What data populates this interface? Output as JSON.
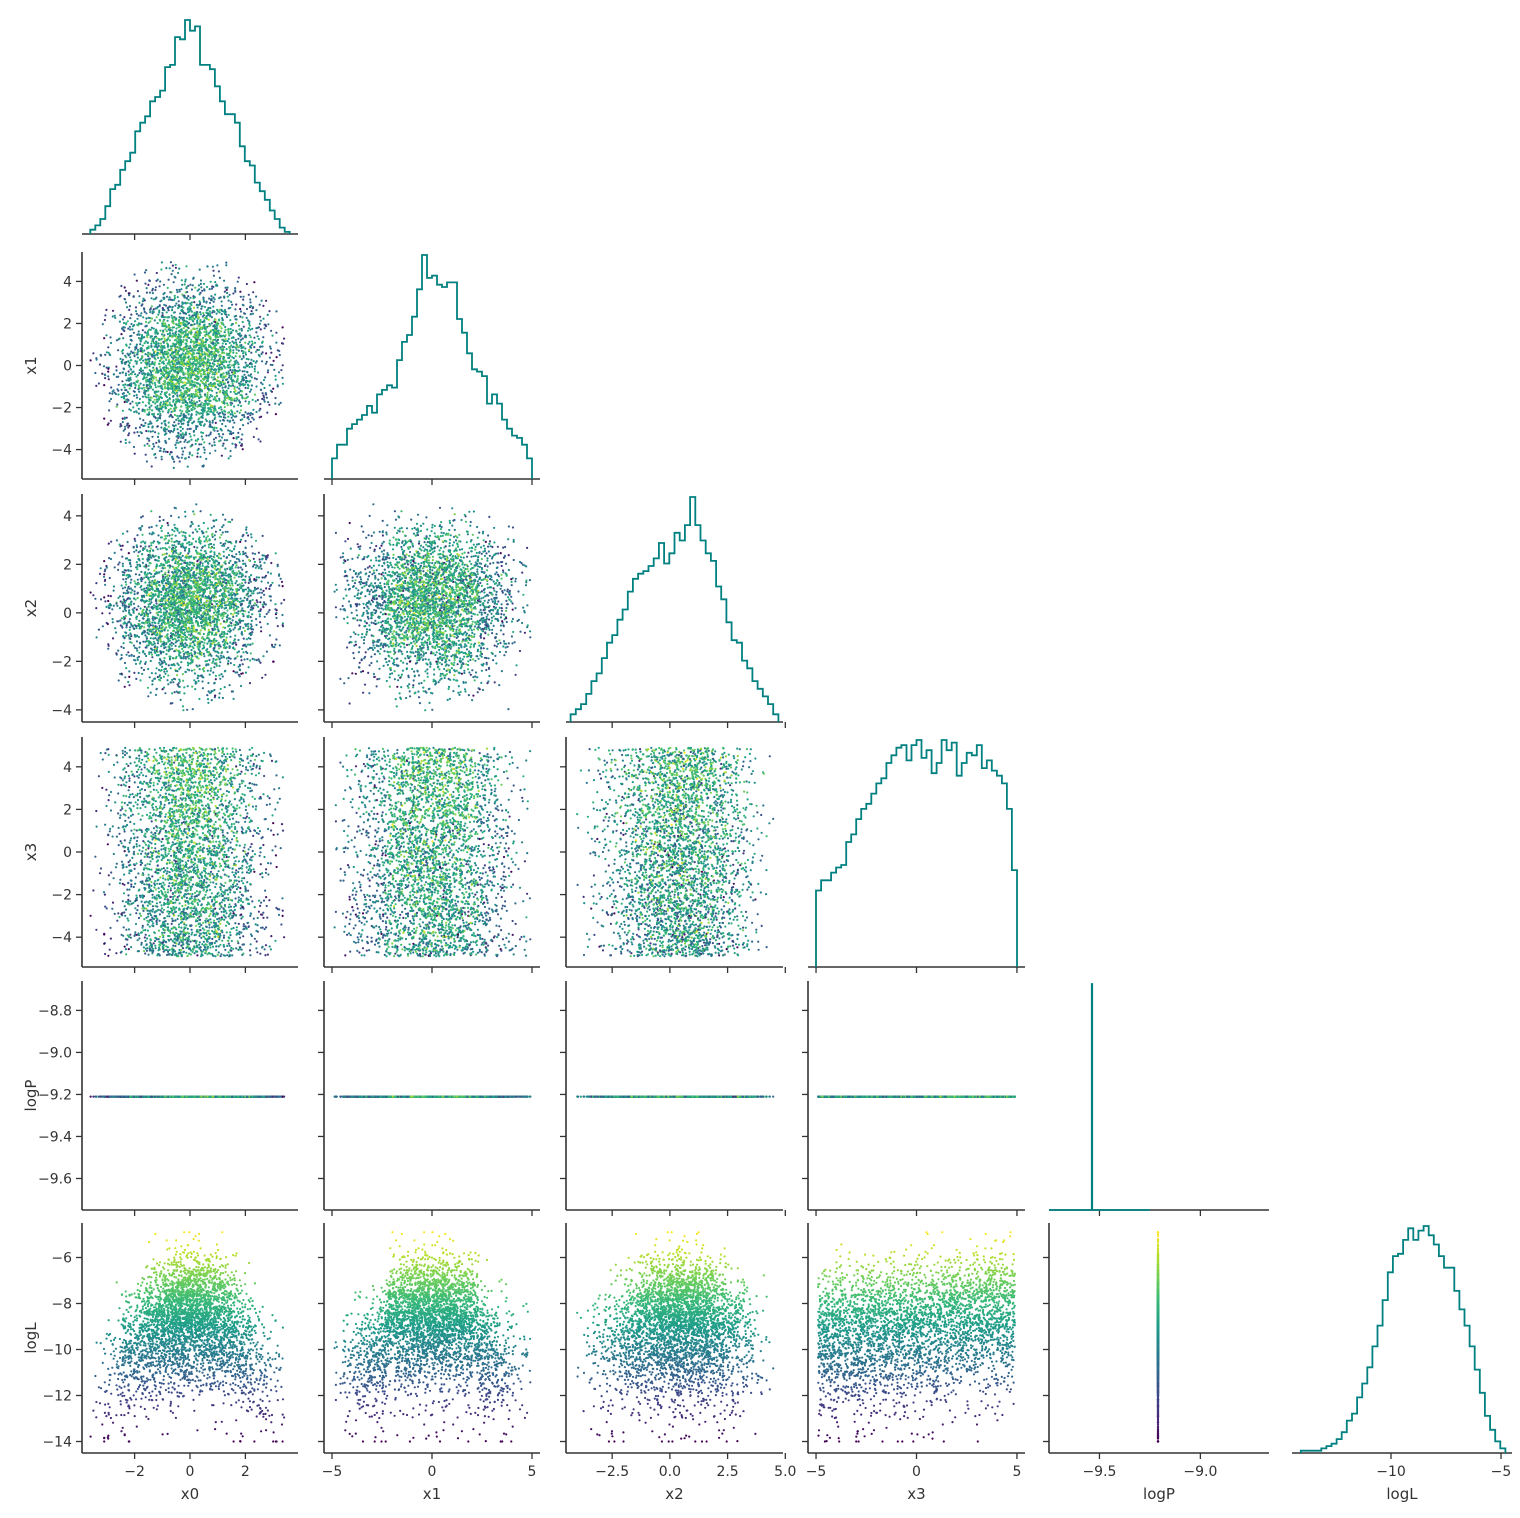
{
  "chart_data": {
    "type": "scatter",
    "layout": "corner-pairplot",
    "variables": [
      "x0",
      "x1",
      "x2",
      "x3",
      "logP",
      "logL"
    ],
    "point_color_by": "logL",
    "colormap": "viridis",
    "histogram_color": "#008080",
    "n_samples": 3500,
    "axes": {
      "x0": {
        "range": [
          -3.9,
          3.9
        ],
        "ticks": [
          -2,
          0,
          2
        ],
        "tick_labels": [
          "−2",
          "0",
          "2"
        ]
      },
      "x1": {
        "range": [
          -5.4,
          5.4
        ],
        "ticks": [
          -5,
          0,
          5
        ],
        "tick_labels": [
          "−5",
          "0",
          "5"
        ],
        "y_ticks": [
          4,
          2,
          0,
          -2,
          -4
        ],
        "y_tick_labels": [
          "4",
          "2",
          "0",
          "−2",
          "−4"
        ]
      },
      "x2": {
        "range": [
          -4.5,
          4.9
        ],
        "ticks": [
          -2.5,
          0.0,
          2.5,
          5.0
        ],
        "tick_labels": [
          "−2.5",
          "0.0",
          "2.5",
          "5.0"
        ],
        "y_ticks": [
          4,
          2,
          0,
          -2,
          -4
        ],
        "y_tick_labels": [
          "4",
          "2",
          "0",
          "−2",
          "−4"
        ]
      },
      "x3": {
        "range": [
          -5.4,
          5.4
        ],
        "ticks": [
          -5,
          0,
          5
        ],
        "tick_labels": [
          "−5",
          "0",
          "5"
        ],
        "y_ticks": [
          4,
          2,
          0,
          -2,
          -4
        ],
        "y_tick_labels": [
          "4",
          "2",
          "0",
          "−2",
          "−4"
        ]
      },
      "logP": {
        "range": [
          -9.75,
          -8.66
        ],
        "ticks": [
          -9.5,
          -9.0
        ],
        "tick_labels": [
          "−9.5",
          "−9.0"
        ],
        "y_ticks": [
          -8.8,
          -9.0,
          -9.2,
          -9.4,
          -9.6
        ],
        "y_tick_labels": [
          "−8.8",
          "−9.0",
          "−9.2",
          "−9.4",
          "−9.6"
        ]
      },
      "logL": {
        "range": [
          -14.5,
          -4.5
        ],
        "ticks": [
          -10,
          -5
        ],
        "tick_labels": [
          "−10",
          "−5"
        ],
        "y_ticks": [
          -6,
          -8,
          -10,
          -12,
          -14
        ],
        "y_tick_labels": [
          "−6",
          "−8",
          "−10",
          "−12",
          "−14"
        ]
      }
    },
    "logP_value": -9.21,
    "logP_hist_range": [
      -9.75,
      -9.25
    ],
    "histograms": {
      "x0": {
        "range": [
          -3.6,
          3.6
        ],
        "counts": [
          2,
          4,
          7,
          13,
          21,
          23,
          30,
          34,
          38,
          48,
          52,
          55,
          62,
          64,
          67,
          78,
          79,
          92,
          91,
          100,
          95,
          97,
          79,
          79,
          77,
          69,
          62,
          56,
          56,
          52,
          41,
          34,
          32,
          24,
          20,
          16,
          11,
          7,
          3,
          1
        ]
      },
      "x1": {
        "range": [
          -5.0,
          5.0
        ],
        "counts": [
          9,
          15,
          15,
          22,
          24,
          26,
          28,
          32,
          29,
          37,
          39,
          41,
          40,
          52,
          60,
          63,
          71,
          83,
          98,
          88,
          89,
          85,
          84,
          86,
          86,
          70,
          64,
          55,
          48,
          47,
          45,
          33,
          37,
          33,
          26,
          22,
          19,
          18,
          15,
          9
        ]
      },
      "x2": {
        "range": [
          -4.3,
          4.7
        ],
        "counts": [
          3,
          5,
          7,
          11,
          16,
          19,
          25,
          31,
          34,
          40,
          44,
          51,
          56,
          58,
          59,
          61,
          64,
          70,
          62,
          66,
          74,
          71,
          77,
          88,
          77,
          71,
          66,
          63,
          53,
          48,
          39,
          32,
          31,
          24,
          21,
          16,
          13,
          10,
          7,
          3
        ]
      },
      "x3": {
        "range": [
          -5.0,
          5.0
        ],
        "counts": [
          30,
          34,
          34,
          37,
          39,
          40,
          49,
          52,
          58,
          62,
          64,
          68,
          72,
          74,
          80,
          83,
          86,
          87,
          81,
          87,
          89,
          82,
          85,
          76,
          80,
          89,
          85,
          88,
          75,
          80,
          84,
          83,
          87,
          78,
          81,
          77,
          75,
          72,
          62,
          38
        ]
      },
      "logP": {
        "range": [
          -9.75,
          -9.25
        ],
        "counts": [
          0,
          0,
          0,
          0,
          0,
          0,
          0,
          0,
          0,
          0,
          0,
          0,
          0,
          0,
          0,
          0,
          0,
          0,
          0,
          0,
          0,
          0,
          0,
          0,
          0,
          0,
          0,
          0,
          0,
          0,
          0,
          0,
          0,
          0,
          0,
          0,
          0,
          0,
          0,
          0,
          0,
          0,
          0,
          0,
          0,
          0,
          0,
          0,
          0,
          0,
          0,
          0,
          0,
          0,
          0,
          0,
          0,
          0,
          0,
          0,
          0,
          0,
          0,
          0,
          0,
          0,
          0,
          0,
          0,
          0,
          0,
          0,
          0,
          0,
          0,
          0,
          0,
          0,
          0,
          0,
          0,
          0,
          0,
          0,
          0,
          0,
          0,
          0,
          0,
          0,
          0,
          0,
          0,
          0,
          0,
          0,
          0,
          0,
          0,
          0,
          0,
          0,
          0,
          0,
          0,
          0,
          0,
          0,
          0,
          100,
          0,
          0,
          0,
          0,
          0,
          0,
          0,
          0,
          0,
          0,
          0,
          0,
          0,
          0,
          0,
          0,
          0,
          0,
          0,
          0,
          0,
          0,
          0,
          0,
          0,
          0,
          0,
          0,
          0,
          0,
          0,
          0,
          0,
          0,
          0,
          0,
          0,
          0,
          0,
          0,
          0,
          0,
          0,
          0,
          0,
          0,
          0,
          0,
          0,
          0,
          0,
          0,
          0,
          0,
          0,
          0,
          0,
          0,
          0,
          0,
          0,
          0,
          0,
          0,
          0,
          0,
          0,
          0,
          0,
          0,
          0,
          0,
          0,
          0,
          0,
          0,
          0,
          0,
          0,
          0,
          0,
          0,
          0,
          0,
          0,
          0,
          0,
          0,
          0,
          0,
          0,
          0,
          0,
          0,
          0,
          0,
          0,
          0,
          0,
          0,
          0,
          0,
          0,
          0,
          0,
          0,
          0,
          0,
          0,
          0,
          0,
          0,
          0,
          0,
          0,
          0,
          0,
          0,
          0,
          0,
          0,
          0,
          0,
          0,
          0,
          0,
          0,
          0,
          0,
          0,
          0,
          0,
          0,
          0,
          0,
          0,
          0,
          0,
          0,
          0,
          0,
          0,
          0,
          0,
          0,
          0,
          0
        ]
      },
      "logL": {
        "range": [
          -14.1,
          -4.8
        ],
        "counts": [
          1,
          1,
          1,
          1,
          2,
          3,
          4,
          6,
          9,
          14,
          17,
          24,
          30,
          37,
          46,
          55,
          66,
          78,
          85,
          86,
          92,
          97,
          92,
          96,
          98,
          94,
          90,
          85,
          80,
          80,
          70,
          62,
          55,
          46,
          36,
          26,
          16,
          10,
          5,
          2
        ]
      }
    }
  }
}
